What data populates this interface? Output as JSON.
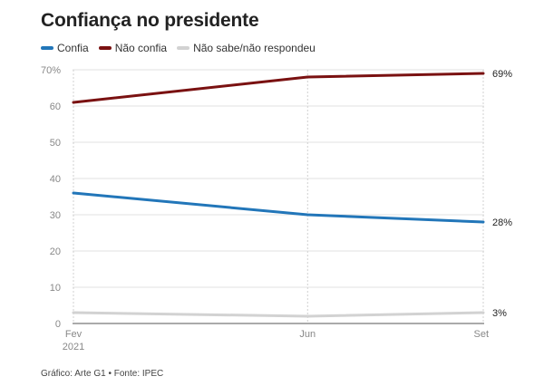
{
  "title": "Confiança no presidente",
  "source": "Gráfico: Arte G1 • Fonte: IPEC",
  "chart_data": {
    "type": "line",
    "title": "Confiança no presidente",
    "x": [
      "Fev 2021",
      "Jun",
      "Set"
    ],
    "x_tick_labels": [
      {
        "lines": [
          "Fev",
          "2021"
        ]
      },
      {
        "lines": [
          "Jun"
        ]
      },
      {
        "lines": [
          "Set"
        ]
      }
    ],
    "y_ticks": [
      "70%",
      "60",
      "50",
      "40",
      "30",
      "20",
      "10",
      "0"
    ],
    "ylim": [
      0,
      70
    ],
    "grid": true,
    "legend_position": "top-left",
    "series": [
      {
        "name": "Confia",
        "values": [
          36,
          30,
          28
        ],
        "color": "#2276b9",
        "end_label": "28%"
      },
      {
        "name": "Não confia",
        "values": [
          61,
          68,
          69
        ],
        "color": "#7a1111",
        "end_label": "69%"
      },
      {
        "name": "Não sabe/não respondeu",
        "values": [
          3,
          2,
          3
        ],
        "color": "#d2d2d2",
        "end_label": "3%"
      }
    ]
  }
}
